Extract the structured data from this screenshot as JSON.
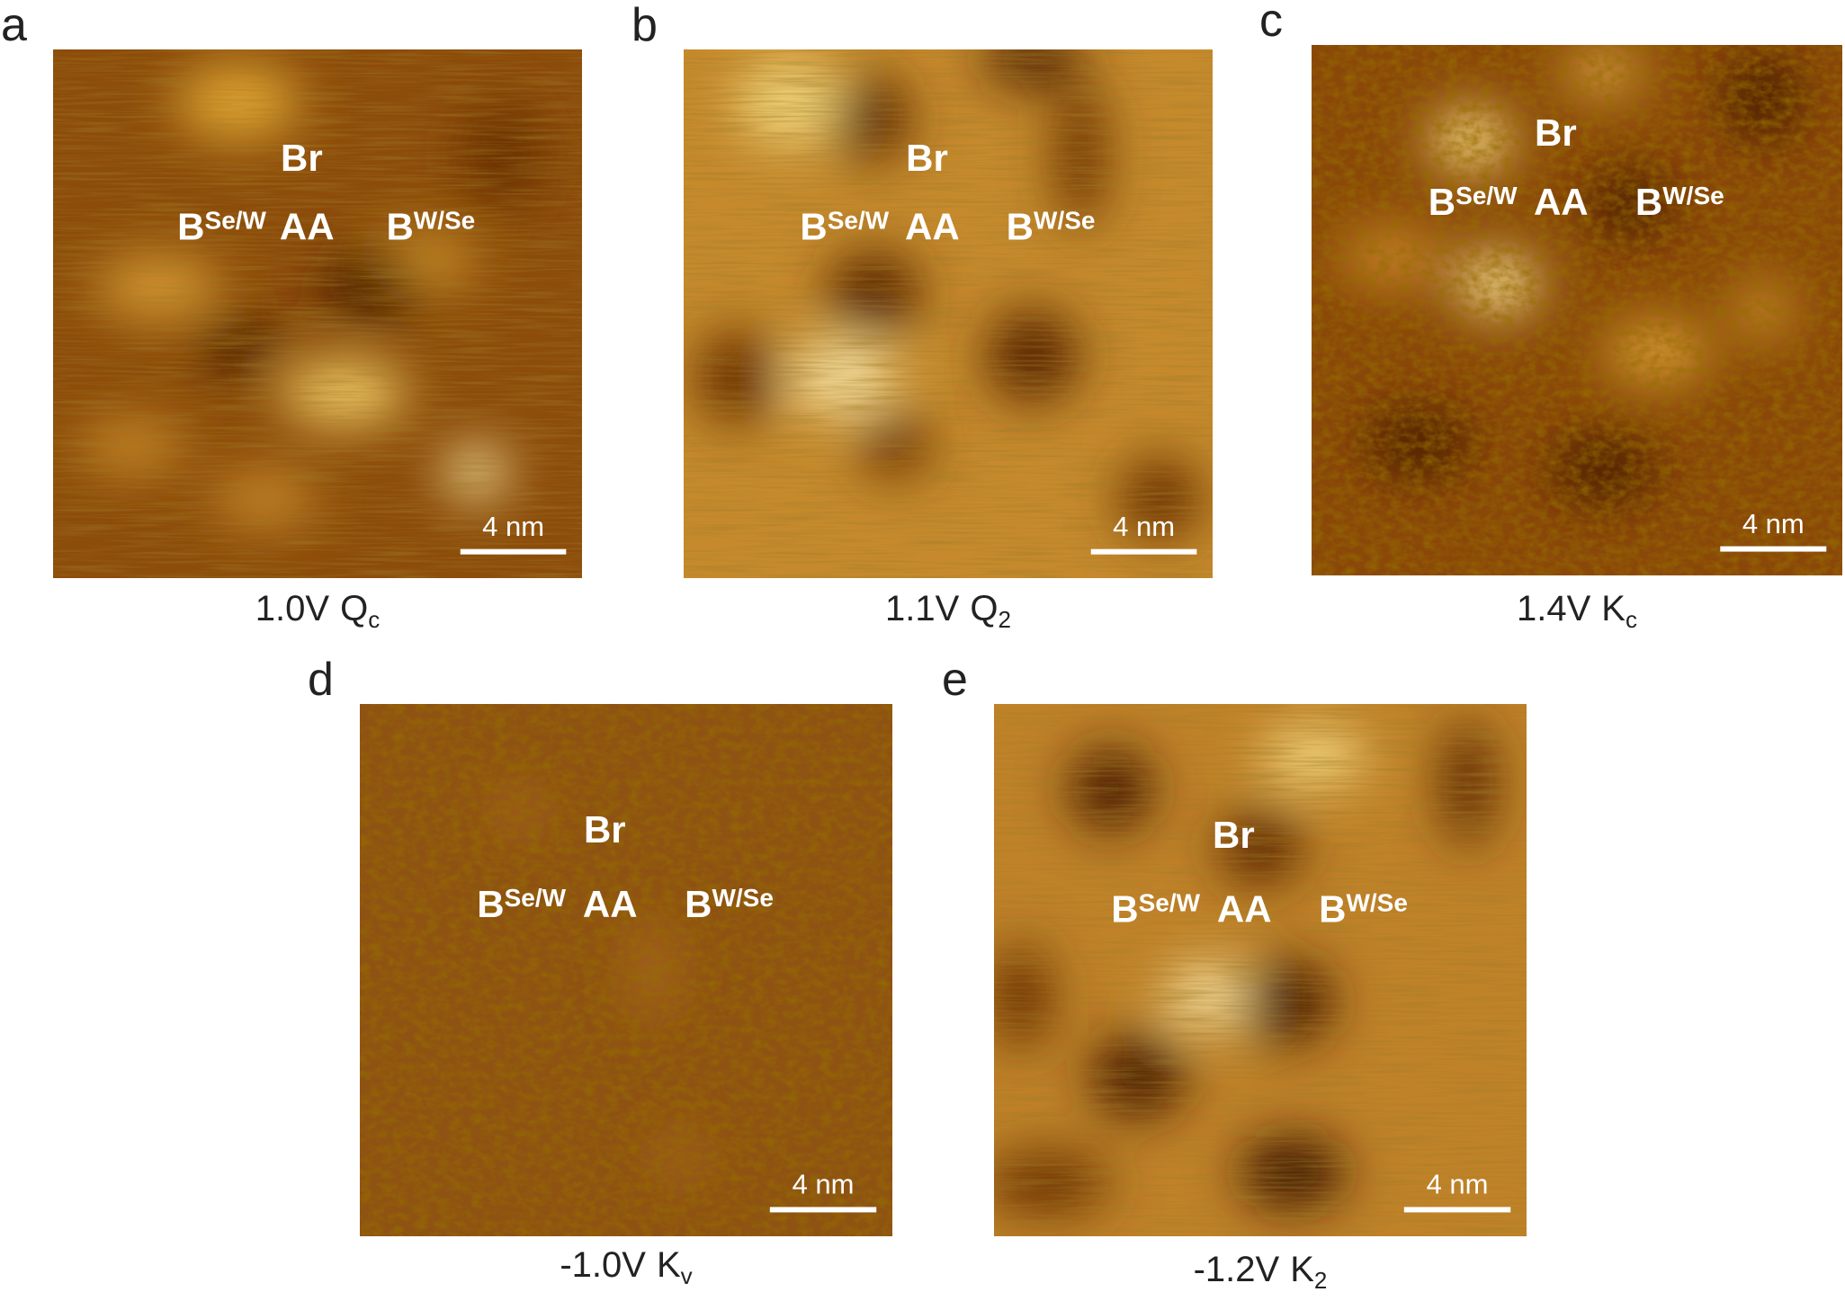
{
  "panels": [
    {
      "label": "a",
      "br": "Br",
      "b_left": "B",
      "b_left_sup": "Se/W",
      "aa": "AA",
      "b_right": "B",
      "b_right_sup": "W/Se",
      "scale_bar": "4 nm",
      "caption_voltage": "1.0V",
      "caption_state": "Q",
      "caption_sub": "c"
    },
    {
      "label": "b",
      "br": "Br",
      "b_left": "B",
      "b_left_sup": "Se/W",
      "aa": "AA",
      "b_right": "B",
      "b_right_sup": "W/Se",
      "scale_bar": "4 nm",
      "caption_voltage": "1.1V",
      "caption_state": "Q",
      "caption_sub": "2"
    },
    {
      "label": "c",
      "br": "Br",
      "b_left": "B",
      "b_left_sup": "Se/W",
      "aa": "AA",
      "b_right": "B",
      "b_right_sup": "W/Se",
      "scale_bar": "4 nm",
      "caption_voltage": "1.4V",
      "caption_state": "K",
      "caption_sub": "c"
    },
    {
      "label": "d",
      "br": "Br",
      "b_left": "B",
      "b_left_sup": "Se/W",
      "aa": "AA",
      "b_right": "B",
      "b_right_sup": "W/Se",
      "scale_bar": "4 nm",
      "caption_voltage": "-1.0V",
      "caption_state": "K",
      "caption_sub": "v"
    },
    {
      "label": "e",
      "br": "Br",
      "b_left": "B",
      "b_left_sup": "Se/W",
      "aa": "AA",
      "b_right": "B",
      "b_right_sup": "W/Se",
      "scale_bar": "4 nm",
      "caption_voltage": "-1.2V",
      "caption_state": "K",
      "caption_sub": "2"
    }
  ]
}
